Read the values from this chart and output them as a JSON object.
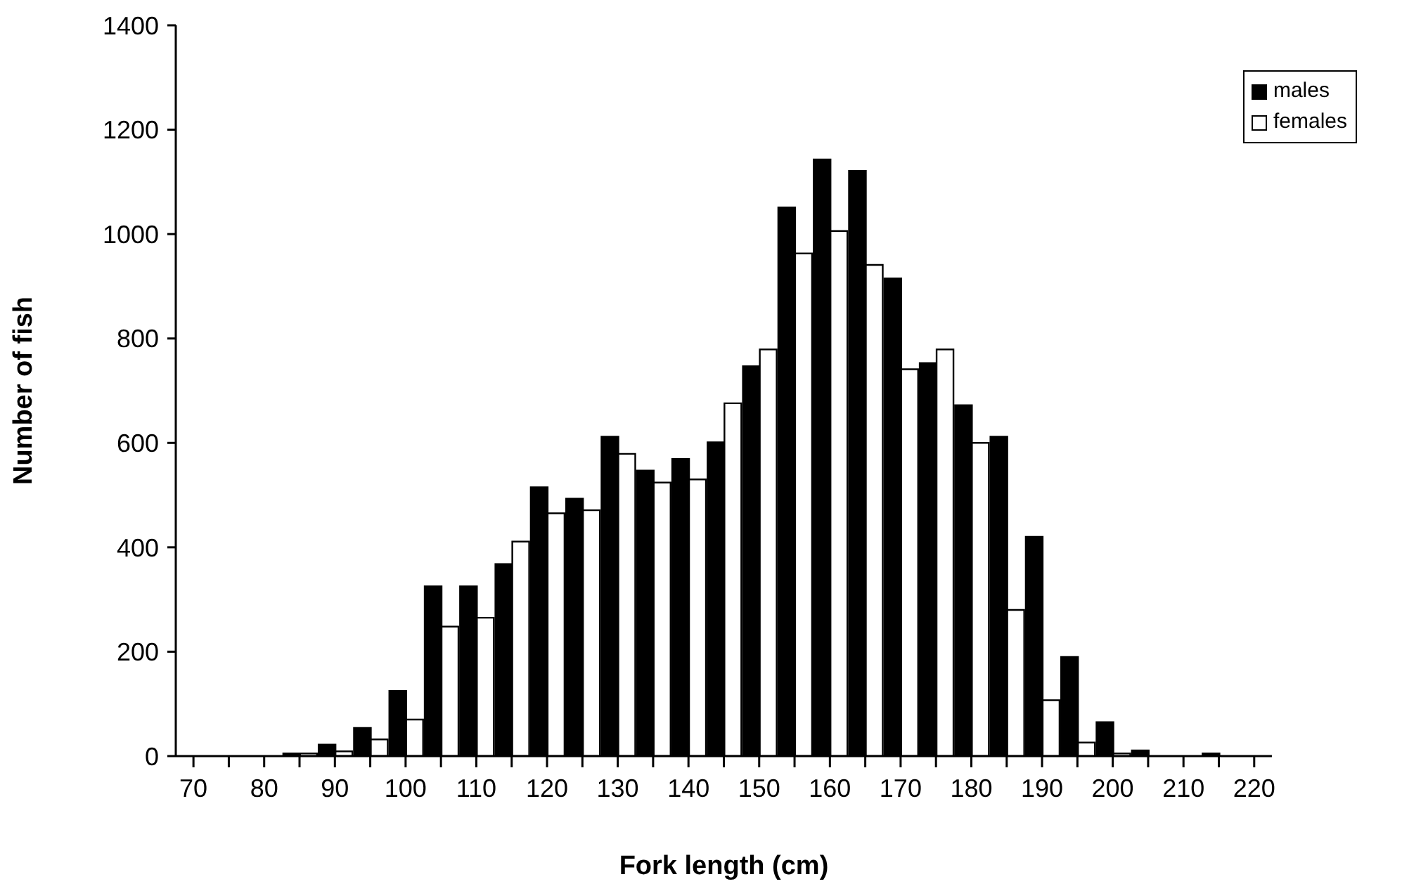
{
  "chart_data": {
    "type": "bar",
    "xlabel": "Fork length (cm)",
    "ylabel": "Number of fish",
    "categories": [
      "70",
      null,
      "80",
      null,
      "90",
      null,
      "100",
      null,
      "110",
      null,
      "120",
      null,
      "130",
      null,
      "140",
      null,
      "150",
      null,
      "160",
      null,
      "170",
      null,
      "180",
      null,
      "190",
      null,
      "200",
      null,
      "210",
      null,
      "220"
    ],
    "series": [
      {
        "name": "males",
        "color": "#000000",
        "values": [
          0,
          0,
          0,
          5,
          22,
          54,
          125,
          325,
          325,
          368,
          515,
          493,
          612,
          547,
          569,
          601,
          747,
          1051,
          1143,
          1121,
          915,
          753,
          672,
          612,
          420,
          190,
          65,
          11,
          0,
          5,
          0
        ]
      },
      {
        "name": "females",
        "color": "#ffffff",
        "values": [
          0,
          0,
          0,
          5,
          9,
          32,
          70,
          248,
          265,
          411,
          465,
          471,
          579,
          524,
          530,
          676,
          779,
          963,
          1006,
          941,
          741,
          779,
          600,
          280,
          107,
          26,
          5,
          null,
          0,
          null,
          0
        ]
      }
    ],
    "ylim": [
      0,
      1400
    ],
    "yticks": [
      0,
      200,
      400,
      600,
      800,
      1000,
      1200,
      1400
    ],
    "grid": false,
    "legend": "top right"
  }
}
